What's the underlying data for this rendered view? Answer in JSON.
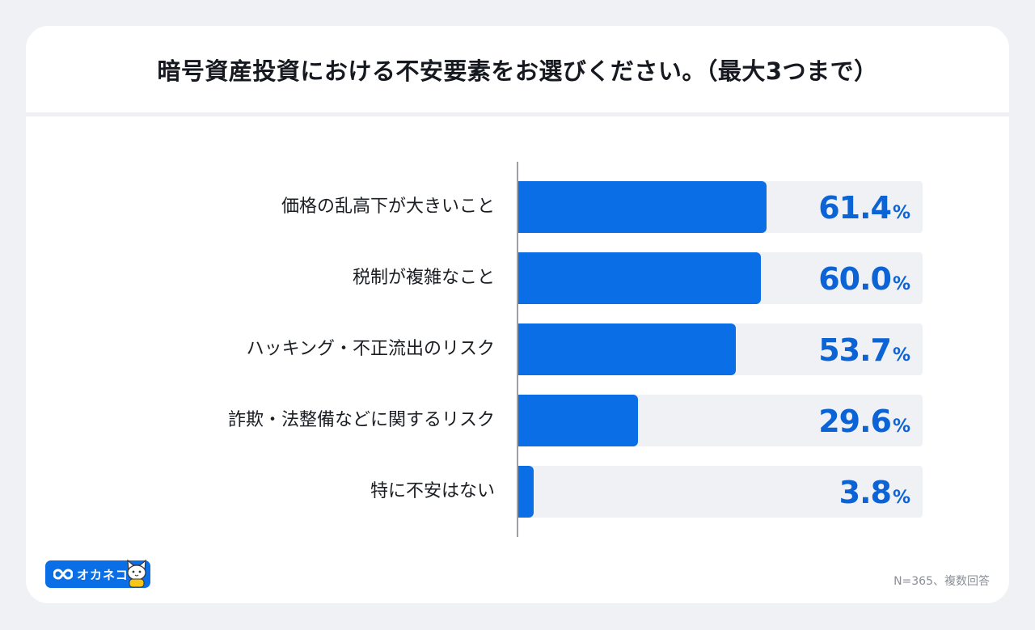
{
  "title": "暗号資産投資における不安要素をお選びください。（最大3つまで）",
  "chart_data": {
    "type": "bar",
    "orientation": "horizontal",
    "categories": [
      "価格の乱高下が大きいこと",
      "税制が複雑なこと",
      "ハッキング・不正流出のリスク",
      "詐欺・法整備などに関するリスク",
      "特に不安はない"
    ],
    "values": [
      61.4,
      60.0,
      53.7,
      29.6,
      3.8
    ],
    "value_labels": [
      "61.4",
      "60.0",
      "53.7",
      "29.6",
      "3.8"
    ],
    "unit": "%",
    "xlim": [
      0,
      100
    ],
    "grid": false,
    "bar_color": "#0a6ee6",
    "track_color": "#eff1f4",
    "value_color": "#0b63d6"
  },
  "brand": {
    "name": "オカネコ",
    "icon": "infinity-icon",
    "mascot": "cat-mascot-icon",
    "color": "#0a6ee6"
  },
  "footnote": "N=365、複数回答"
}
